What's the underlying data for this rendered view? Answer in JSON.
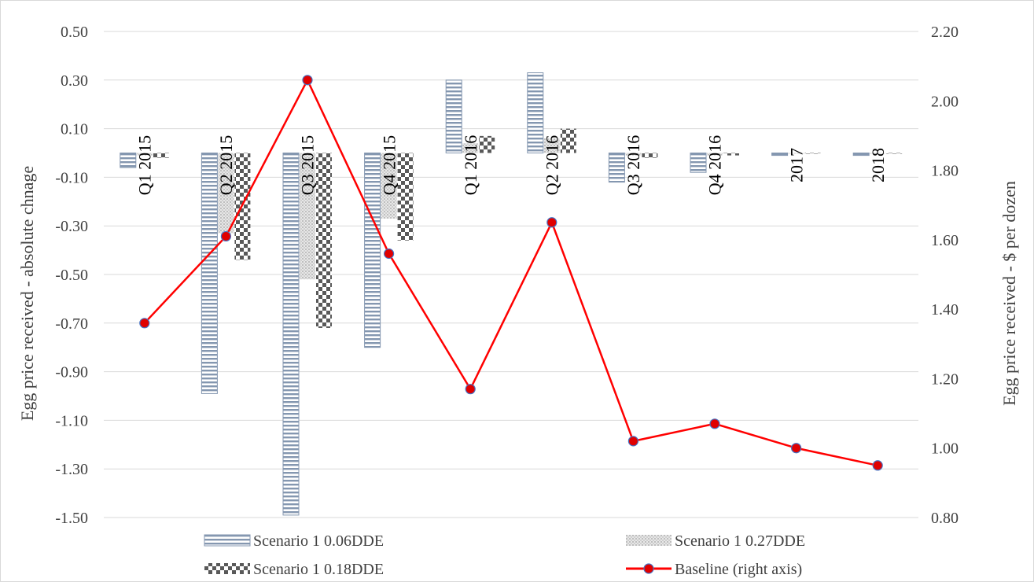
{
  "chart_data": {
    "type": "bar",
    "categories": [
      "Q1 2015",
      "Q2 2015",
      "Q3 2015",
      "Q4 2015",
      "Q1 2016",
      "Q2 2016",
      "Q3 2016",
      "Q4 2016",
      "2017",
      "2018"
    ],
    "series": [
      {
        "name": "Scenario 1 0.06DDE",
        "type": "bar",
        "axis": "left",
        "pattern": "horizontal-stripes",
        "values": [
          -0.06,
          -0.99,
          -1.49,
          -0.8,
          0.3,
          0.33,
          -0.12,
          -0.08,
          -0.01,
          -0.01
        ]
      },
      {
        "name": "Scenario 1 0.27DDE",
        "type": "bar",
        "axis": "left",
        "pattern": "light-dots",
        "values": [
          -0.01,
          -0.33,
          -0.52,
          -0.27,
          0.04,
          0.06,
          -0.01,
          -0.01,
          0.0,
          0.0
        ]
      },
      {
        "name": "Scenario 1 0.18DDE",
        "type": "bar",
        "axis": "left",
        "pattern": "checkerboard",
        "values": [
          -0.02,
          -0.44,
          -0.72,
          -0.36,
          0.07,
          0.1,
          -0.02,
          -0.01,
          0.0,
          0.0
        ]
      },
      {
        "name": "Baseline (right axis)",
        "type": "line",
        "axis": "right",
        "values": [
          1.36,
          1.61,
          2.06,
          1.56,
          1.17,
          1.65,
          1.02,
          1.07,
          1.0,
          0.95
        ]
      }
    ],
    "ylabel": "Egg price received  - absolute chnage",
    "y2label": "Egg price received - $ per dozen",
    "ylim": [
      -1.5,
      0.5
    ],
    "y2lim": [
      0.8,
      2.2
    ],
    "yticks": [
      "0.50",
      "0.30",
      "0.10",
      "-0.10",
      "-0.30",
      "-0.50",
      "-0.70",
      "-0.90",
      "-1.10",
      "-1.30",
      "-1.50"
    ],
    "y2ticks": [
      "2.20",
      "2.00",
      "1.80",
      "1.60",
      "1.40",
      "1.20",
      "1.00",
      "0.80"
    ],
    "grid": true,
    "legend_position": "bottom",
    "colors": {
      "line": "#ff0000",
      "marker_fill": "#e00000",
      "marker_edge": "#4472c4",
      "stripe": "#8497b0",
      "dots": "#bfbfbf",
      "checker": "#595959"
    }
  }
}
